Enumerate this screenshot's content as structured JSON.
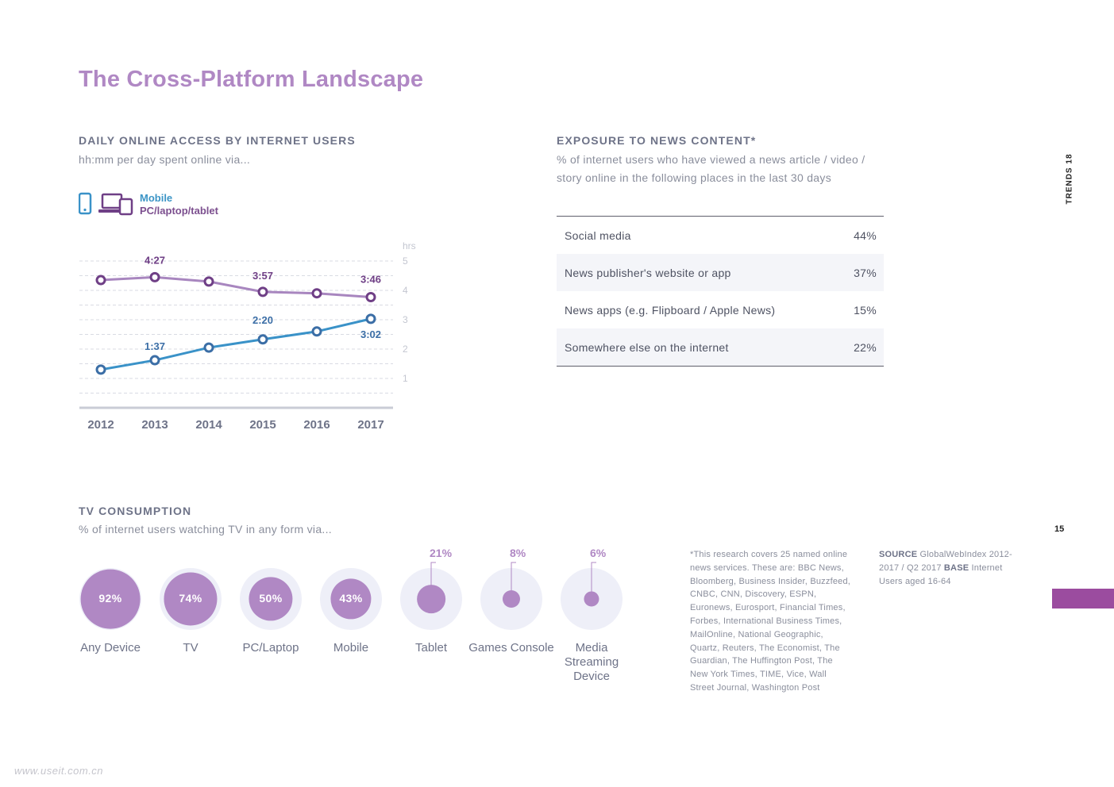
{
  "page_title": "The Cross-Platform Landscape",
  "side_tag": "TRENDS 18",
  "page_number": "15",
  "watermark": "www.useit.com.cn",
  "daily_access": {
    "heading": "DAILY ONLINE ACCESS BY INTERNET USERS",
    "subheading": "hh:mm per day spent online via...",
    "legend": {
      "mobile": "Mobile",
      "pc": "PC/laptop/tablet"
    }
  },
  "news": {
    "heading": "EXPOSURE TO NEWS CONTENT*",
    "subheading": "% of internet users who have viewed a news article / video / story online in the following places in the last 30 days",
    "rows": [
      {
        "label": "Social media",
        "value": "44%"
      },
      {
        "label": "News publisher's website or app",
        "value": "37%"
      },
      {
        "label": "News apps (e.g. Flipboard / Apple News)",
        "value": "15%"
      },
      {
        "label": "Somewhere else on the internet",
        "value": "22%"
      }
    ]
  },
  "tv": {
    "heading": "TV CONSUMPTION",
    "subheading": "% of internet users watching TV in any form via...",
    "items": [
      {
        "label": "Any Device",
        "value": "92%",
        "pct": 92
      },
      {
        "label": "TV",
        "value": "74%",
        "pct": 74
      },
      {
        "label": "PC/Laptop",
        "value": "50%",
        "pct": 50
      },
      {
        "label": "Mobile",
        "value": "43%",
        "pct": 43
      },
      {
        "label": "Tablet",
        "value": "21%",
        "pct": 21
      },
      {
        "label": "Games Console",
        "value": "8%",
        "pct": 8
      },
      {
        "label": "Media Streaming Device",
        "value": "6%",
        "pct": 6
      }
    ]
  },
  "footnote": "*This research covers 25 named online news services. These are: BBC News, Bloomberg, Business Insider, Buzzfeed, CNBC, CNN, Discovery, ESPN, Euronews, Eurosport, Financial Times, Forbes, International Business Times, MailOnline, National Geographic, Quartz, Reuters, The Economist, The Guardian, The Huffington Post, The New York Times, TIME, Vice, Wall Street Journal, Washington Post",
  "source": {
    "source_label": "SOURCE",
    "source_text": "GlobalWebIndex 2012-2017 / Q2 2017",
    "base_label": "BASE",
    "base_text": "Internet Users aged 16-64"
  },
  "colors": {
    "pc": "#a886bf",
    "pc_dark": "#6f3f86",
    "mobile": "#3a92c8",
    "mobile_dark": "#3b6ea6",
    "accent": "#b088c4"
  },
  "chart_data": {
    "type": "line",
    "x": [
      "2012",
      "2013",
      "2014",
      "2015",
      "2016",
      "2017"
    ],
    "ylabel": "hrs",
    "ylim": [
      0,
      5
    ],
    "yticks": [
      "1",
      "2",
      "3",
      "4",
      "5"
    ],
    "grid": true,
    "series": [
      {
        "name": "PC/laptop/tablet",
        "values": [
          4.35,
          4.45,
          4.3,
          3.95,
          3.9,
          3.77
        ],
        "labels": [
          "",
          "4:27",
          "",
          "3:57",
          "",
          "3:46"
        ]
      },
      {
        "name": "Mobile",
        "values": [
          1.3,
          1.62,
          2.05,
          2.33,
          2.6,
          3.03
        ],
        "labels": [
          "",
          "1:37",
          "",
          "2:20",
          "",
          "3:02"
        ]
      }
    ]
  }
}
